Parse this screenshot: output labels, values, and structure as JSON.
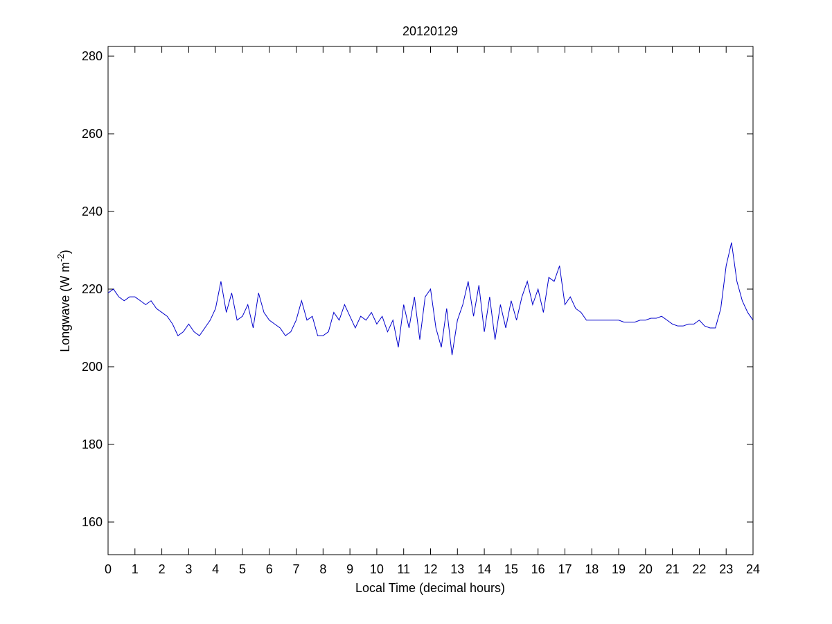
{
  "chart_data": {
    "type": "line",
    "title": "20120129",
    "x_label": "Local Time (decimal hours)",
    "y_label": {
      "text": "Longwave (W m",
      "superscript": "-2",
      "suffix": ")"
    },
    "x": [
      0,
      0.2,
      0.4,
      0.6,
      0.8,
      1,
      1.2,
      1.4,
      1.6,
      1.8,
      2,
      2.2,
      2.4,
      2.6,
      2.8,
      3,
      3.2,
      3.4,
      3.6,
      3.8,
      4,
      4.2,
      4.4,
      4.6,
      4.8,
      5,
      5.2,
      5.4,
      5.6,
      5.8,
      6,
      6.2,
      6.4,
      6.6,
      6.8,
      7,
      7.2,
      7.4,
      7.6,
      7.8,
      8,
      8.2,
      8.4,
      8.6,
      8.8,
      9,
      9.2,
      9.4,
      9.6,
      9.8,
      10,
      10.2,
      10.4,
      10.6,
      10.8,
      11,
      11.2,
      11.4,
      11.6,
      11.8,
      12,
      12.2,
      12.4,
      12.6,
      12.8,
      13,
      13.2,
      13.4,
      13.6,
      13.8,
      14,
      14.2,
      14.4,
      14.6,
      14.8,
      15,
      15.2,
      15.4,
      15.6,
      15.8,
      16,
      16.2,
      16.4,
      16.6,
      16.8,
      17,
      17.2,
      17.4,
      17.6,
      17.8,
      18,
      18.2,
      18.4,
      18.6,
      18.8,
      19,
      19.2,
      19.4,
      19.6,
      19.8,
      20,
      20.2,
      20.4,
      20.6,
      20.8,
      21,
      21.2,
      21.4,
      21.6,
      21.8,
      22,
      22.2,
      22.4,
      22.6,
      22.8,
      23,
      23.2,
      23.4,
      23.6,
      23.8,
      24
    ],
    "series": [
      {
        "color": "#0000cc",
        "values": [
          219,
          220,
          218,
          217,
          218,
          218,
          217,
          216,
          217,
          215,
          214,
          213,
          211,
          208,
          209,
          211,
          209,
          208,
          210,
          212,
          215,
          222,
          214,
          219,
          212,
          213,
          216,
          210,
          219,
          214,
          212,
          211,
          210,
          208,
          209,
          212,
          217,
          212,
          213,
          208,
          208,
          209,
          214,
          212,
          216,
          213,
          210,
          213,
          212,
          214,
          211,
          213,
          209,
          212,
          205,
          216,
          210,
          218,
          207,
          218,
          220,
          210,
          205,
          215,
          203,
          212,
          216,
          222,
          213,
          221,
          209,
          218,
          207,
          216,
          210,
          217,
          212,
          218,
          222,
          216,
          220,
          214,
          223,
          222,
          226,
          216,
          218,
          215,
          214,
          212,
          212,
          212,
          212,
          212,
          212,
          212,
          211.5,
          211.5,
          211.5,
          212,
          212,
          212.5,
          212.5,
          213,
          212,
          211,
          210.5,
          210.5,
          211,
          211,
          212,
          210.5,
          210,
          210,
          215,
          226,
          232,
          222,
          217,
          214,
          212
        ]
      }
    ],
    "xlim": [
      0,
      24
    ],
    "xticks": [
      0,
      1,
      2,
      3,
      4,
      5,
      6,
      7,
      8,
      9,
      10,
      11,
      12,
      13,
      14,
      15,
      16,
      17,
      18,
      19,
      20,
      21,
      22,
      23,
      24
    ],
    "ylim": [
      151.6,
      282.5
    ],
    "yticks": [
      160,
      180,
      200,
      220,
      240,
      260,
      280
    ],
    "grid": false
  }
}
